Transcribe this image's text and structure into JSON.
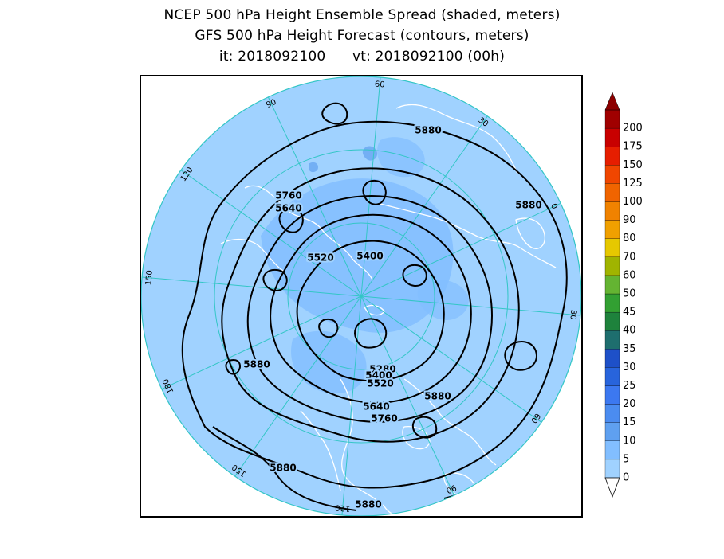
{
  "titles": {
    "line1": "NCEP 500 hPa Height Ensemble Spread (shaded, meters)",
    "line2": "GFS 500 hPa Height Forecast (contours, meters)",
    "line3": "it: 2018092100      vt: 2018092100 (00h)"
  },
  "map": {
    "projection": "north-polar-stereographic",
    "background_color": "#a0d2ff",
    "coastline_color": "#ffffff",
    "graticule_color": "#33c6c6",
    "contour_color": "#000000",
    "longitude_labels": [
      "60",
      "30",
      "0",
      "30",
      "60",
      "90",
      "120",
      "150",
      "180",
      "150",
      "120",
      "90"
    ],
    "contour_labels": [
      "5880",
      "5880",
      "5760",
      "5640",
      "5520",
      "5400",
      "5880",
      "5280",
      "5400",
      "5520",
      "5640",
      "5760",
      "5880",
      "5880",
      "5880"
    ]
  },
  "colorbar": {
    "levels": [
      "0",
      "5",
      "10",
      "15",
      "20",
      "25",
      "30",
      "35",
      "40",
      "45",
      "50",
      "60",
      "70",
      "80",
      "90",
      "100",
      "125",
      "150",
      "175",
      "200"
    ],
    "colors": [
      "#a0d2ff",
      "#82beff",
      "#5fa0f0",
      "#4b8cf0",
      "#3c78f0",
      "#2864dc",
      "#1e50c8",
      "#1e6e6e",
      "#1e823c",
      "#32a032",
      "#64b432",
      "#a0b400",
      "#e6c800",
      "#f0a000",
      "#f08200",
      "#f06400",
      "#f04600",
      "#e61e00",
      "#c80000",
      "#a00000"
    ]
  }
}
